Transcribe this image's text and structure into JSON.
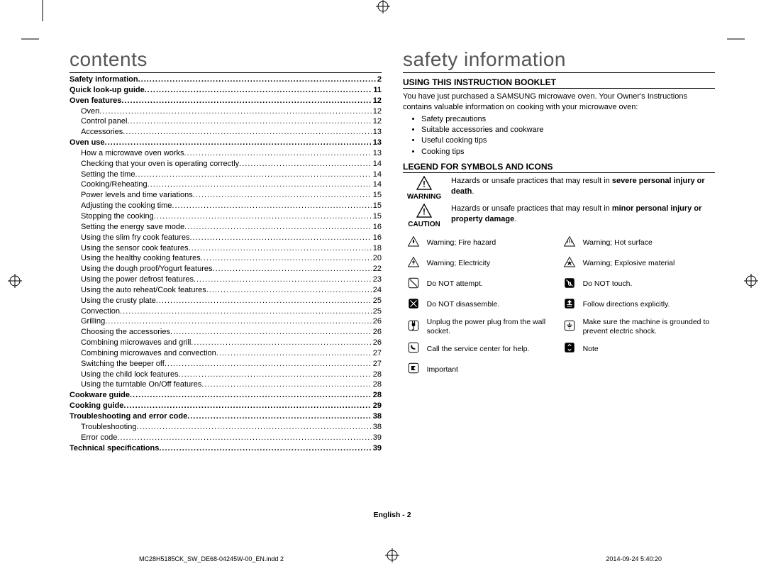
{
  "cropMarkColor": "#000000",
  "leftCol": {
    "heading": "contents",
    "toc": [
      {
        "label": "Safety information",
        "page": "2",
        "bold": true,
        "sub": false
      },
      {
        "label": "Quick look-up guide",
        "page": "11",
        "bold": true,
        "sub": false
      },
      {
        "label": "Oven features",
        "page": "12",
        "bold": true,
        "sub": false
      },
      {
        "label": "Oven",
        "page": "12",
        "bold": false,
        "sub": true
      },
      {
        "label": "Control panel",
        "page": "12",
        "bold": false,
        "sub": true
      },
      {
        "label": "Accessories",
        "page": "13",
        "bold": false,
        "sub": true
      },
      {
        "label": "Oven use",
        "page": "13",
        "bold": true,
        "sub": false
      },
      {
        "label": "How a microwave oven works",
        "page": "13",
        "bold": false,
        "sub": true
      },
      {
        "label": "Checking that your oven is operating correctly",
        "page": "14",
        "bold": false,
        "sub": true
      },
      {
        "label": "Setting the time",
        "page": "14",
        "bold": false,
        "sub": true
      },
      {
        "label": "Cooking/Reheating",
        "page": "14",
        "bold": false,
        "sub": true
      },
      {
        "label": "Power levels and time variations",
        "page": "15",
        "bold": false,
        "sub": true
      },
      {
        "label": "Adjusting the cooking time",
        "page": "15",
        "bold": false,
        "sub": true
      },
      {
        "label": "Stopping the cooking",
        "page": "15",
        "bold": false,
        "sub": true
      },
      {
        "label": "Setting the energy save mode",
        "page": "16",
        "bold": false,
        "sub": true
      },
      {
        "label": "Using the slim fry cook features",
        "page": "16",
        "bold": false,
        "sub": true
      },
      {
        "label": "Using the sensor cook features",
        "page": "18",
        "bold": false,
        "sub": true
      },
      {
        "label": "Using the healthy cooking features",
        "page": "20",
        "bold": false,
        "sub": true
      },
      {
        "label": "Using the dough proof/Yogurt features",
        "page": "22",
        "bold": false,
        "sub": true
      },
      {
        "label": "Using the power defrost features",
        "page": "23",
        "bold": false,
        "sub": true
      },
      {
        "label": "Using the auto reheat/Cook features",
        "page": "24",
        "bold": false,
        "sub": true
      },
      {
        "label": "Using the crusty plate",
        "page": "25",
        "bold": false,
        "sub": true
      },
      {
        "label": "Convection",
        "page": "25",
        "bold": false,
        "sub": true
      },
      {
        "label": "Grilling",
        "page": "26",
        "bold": false,
        "sub": true
      },
      {
        "label": "Choosing the accessories",
        "page": "26",
        "bold": false,
        "sub": true
      },
      {
        "label": "Combining microwaves and grill",
        "page": "26",
        "bold": false,
        "sub": true
      },
      {
        "label": "Combining microwaves and convection",
        "page": "27",
        "bold": false,
        "sub": true
      },
      {
        "label": "Switching the beeper off",
        "page": "27",
        "bold": false,
        "sub": true
      },
      {
        "label": "Using the child lock features",
        "page": "28",
        "bold": false,
        "sub": true
      },
      {
        "label": "Using the turntable On/Off features",
        "page": "28",
        "bold": false,
        "sub": true
      },
      {
        "label": "Cookware guide",
        "page": "28",
        "bold": true,
        "sub": false
      },
      {
        "label": "Cooking guide",
        "page": "29",
        "bold": true,
        "sub": false
      },
      {
        "label": "Troubleshooting and error code",
        "page": "38",
        "bold": true,
        "sub": false
      },
      {
        "label": "Troubleshooting",
        "page": "38",
        "bold": false,
        "sub": true
      },
      {
        "label": "Error code",
        "page": "39",
        "bold": false,
        "sub": true
      },
      {
        "label": "Technical specifications",
        "page": "39",
        "bold": true,
        "sub": false
      }
    ]
  },
  "rightCol": {
    "heading": "safety information",
    "section1": {
      "title": "USING THIS INSTRUCTION BOOKLET",
      "intro": "You have just purchased a SAMSUNG microwave oven. Your Owner's Instructions contains valuable information on cooking with your microwave oven:",
      "bullets": [
        "Safety precautions",
        "Suitable accessories and cookware",
        "Useful cooking tips",
        "Cooking tips"
      ]
    },
    "section2": {
      "title": "LEGEND FOR SYMBOLS AND ICONS",
      "warning": {
        "label": "WARNING",
        "textPref": "Hazards or unsafe practices that may result in ",
        "textBold": "severe personal injury or death",
        "textSuf": "."
      },
      "caution": {
        "label": "CAUTION",
        "textPref": "Hazards or unsafe practices that may result in ",
        "textBold": "minor personal injury or property damage",
        "textSuf": "."
      },
      "gridRows": [
        [
          {
            "icon": "fire",
            "text": "Warning; Fire hazard"
          },
          {
            "icon": "hot",
            "text": "Warning; Hot surface"
          }
        ],
        [
          {
            "icon": "electric",
            "text": "Warning; Electricity"
          },
          {
            "icon": "explosive",
            "text": "Warning; Explosive material"
          }
        ],
        [
          {
            "icon": "no-attempt",
            "text": "Do NOT attempt."
          },
          {
            "icon": "no-touch",
            "text": "Do NOT touch."
          }
        ],
        [
          {
            "icon": "no-disassemble",
            "text": "Do NOT disassemble."
          },
          {
            "icon": "follow",
            "text": "Follow directions explicitly."
          }
        ],
        [
          {
            "icon": "unplug",
            "text": "Unplug the power plug from the wall socket."
          },
          {
            "icon": "ground",
            "text": "Make sure the machine is grounded to prevent electric shock."
          }
        ],
        [
          {
            "icon": "call",
            "text": "Call the service center for help."
          },
          {
            "icon": "note",
            "text": "Note"
          }
        ],
        [
          {
            "icon": "important",
            "text": "Important"
          },
          null
        ]
      ]
    }
  },
  "footer": {
    "center": "English - 2",
    "left": "MC28H5185CK_SW_DE68-04245W-00_EN.indd   2",
    "right": "2014-09-24   5:40:20"
  },
  "icons": {
    "warning": "<svg width='22' height='20' viewBox='0 0 24 22'><path d='M12 1 L23 21 L1 21 Z' fill='none' stroke='#000' stroke-width='1.5'/><text x='12' y='17' text-anchor='middle' font-size='13' font-weight='bold'>!</text></svg>",
    "fire": "<svg width='18' height='18' viewBox='0 0 24 24'><path d='M12 2 L22 20 L2 20 Z' fill='none' stroke='#000' stroke-width='1.2'/><path d='M12 7 C10 10 10 13 12 15 C14 13 14 10 12 7' fill='#000'/></svg>",
    "hot": "<svg width='18' height='18' viewBox='0 0 24 24'><path d='M12 2 L22 20 L2 20 Z' fill='none' stroke='#000' stroke-width='1.2'/><path d='M8 8 C7 10 9 12 8 14 M12 7 C11 9 13 11 12 14 M16 8 C15 10 17 12 16 14' fill='none' stroke='#000' stroke-width='1.3'/></svg>",
    "electric": "<svg width='18' height='18' viewBox='0 0 24 24'><path d='M12 2 L22 20 L2 20 Z' fill='none' stroke='#000' stroke-width='1.2'/><path d='M13 6 L9 12 L12 12 L10 18 L15 10 L12 10 Z' fill='#000'/></svg>",
    "explosive": "<svg width='18' height='18' viewBox='0 0 24 24'><path d='M12 2 L22 20 L2 20 Z' fill='none' stroke='#000' stroke-width='1.2'/><path d='M12 8 L13 12 L17 11 L14 14 L16 18 L12 15 L8 18 L10 14 L7 11 L11 12 Z' fill='#000'/></svg>",
    "no-attempt": "<svg width='18' height='18' viewBox='0 0 24 24'><rect x='3' y='3' width='18' height='18' rx='3' fill='none' stroke='#000' stroke-width='1.3'/><line x1='5' y1='5' x2='19' y2='19' stroke='#000' stroke-width='1.5'/></svg>",
    "no-touch": "<svg width='18' height='18' viewBox='0 0 24 24'><rect x='3' y='3' width='18' height='18' rx='3' fill='#000'/><path d='M10 8 L10 14 C10 16 12 17 14 16 L14 10' fill='none' stroke='#fff' stroke-width='1.4'/><line x1='6' y1='6' x2='18' y2='18' stroke='#fff' stroke-width='1.5'/></svg>",
    "no-disassemble": "<svg width='18' height='18' viewBox='0 0 24 24'><rect x='3' y='3' width='18' height='18' rx='3' fill='#000'/><line x1='6' y1='18' x2='18' y2='6' stroke='#fff' stroke-width='1.5'/><line x1='6' y1='6' x2='18' y2='18' stroke='#fff' stroke-width='1.5'/></svg>",
    "follow": "<svg width='18' height='18' viewBox='0 0 24 24'><rect x='3' y='3' width='18' height='18' rx='3' fill='#000'/><path d='M12 6 L15 9 L13 9 L13 12 L11 12 L11 9 L9 9 Z M7 14 L17 14 M7 17 L17 17' fill='#fff' stroke='#fff' stroke-width='1.2'/></svg>",
    "unplug": "<svg width='18' height='18' viewBox='0 0 24 24'><rect x='3' y='3' width='18' height='18' rx='3' fill='none' stroke='#000' stroke-width='1.3'/><rect x='9' y='7' width='6' height='6' rx='1' fill='#000'/><line x1='10' y1='4' x2='10' y2='7' stroke='#000' stroke-width='1.5'/><line x1='14' y1='4' x2='14' y2='7' stroke='#000' stroke-width='1.5'/><path d='M12 13 L12 18 Q12 20 9 20' fill='none' stroke='#000' stroke-width='1.5'/></svg>",
    "ground": "<svg width='18' height='18' viewBox='0 0 24 24'><rect x='3' y='3' width='18' height='18' rx='3' fill='none' stroke='#000' stroke-width='1.3'/><line x1='12' y1='6' x2='12' y2='11' stroke='#000' stroke-width='1.5'/><line x1='7' y1='11' x2='17' y2='11' stroke='#000' stroke-width='1.5'/><line x1='9' y1='14' x2='15' y2='14' stroke='#000' stroke-width='1.5'/><line x1='11' y1='17' x2='13' y2='17' stroke='#000' stroke-width='1.5'/></svg>",
    "call": "<svg width='18' height='18' viewBox='0 0 24 24'><rect x='3' y='3' width='18' height='18' rx='3' fill='none' stroke='#000' stroke-width='1.3'/><path d='M8 7 Q6 9 8 13 Q12 17 16 15 L14 13 Q13 14 11 12 Q9 10 10 9 Z' fill='#000'/></svg>",
    "note": "<svg width='18' height='18' viewBox='0 0 24 24'><rect x='3' y='3' width='18' height='18' rx='3' fill='#000'/><path d='M9 9 L12 6 L15 9 M9 15 L12 18 L15 15' fill='none' stroke='#fff' stroke-width='1.5'/></svg>",
    "important": "<svg width='18' height='18' viewBox='0 0 24 24'><rect x='3' y='3' width='18' height='18' rx='3' fill='none' stroke='#000' stroke-width='1.3'/><path d='M8 8 L16 8 L12 12 L16 16 L8 16 L8 8' fill='#000'/></svg>"
  }
}
